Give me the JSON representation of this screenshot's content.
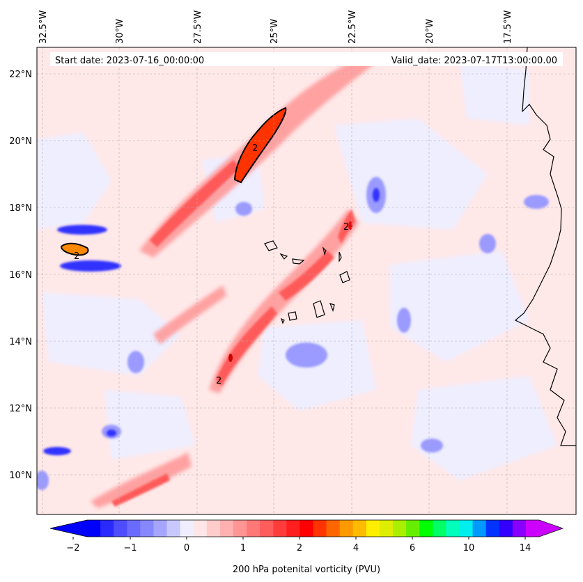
{
  "map": {
    "start_date": "Start date: 2023-07-16_00:00:00",
    "valid_date": "Valid_date: 2023-07-17T13:00:00.00",
    "contour_label": "2",
    "longitude_labels": [
      "32.5°W",
      "30°W",
      "27.5°W",
      "25°W",
      "22.5°W",
      "20°W",
      "17.5°W"
    ],
    "latitude_labels": [
      "22°N",
      "20°N",
      "18°N",
      "16°N",
      "14°N",
      "12°N",
      "10°N"
    ]
  },
  "colorbar": {
    "title": "200 hPa potenital vorticity (PVU)",
    "tick_labels": [
      "−2",
      "−1",
      "0",
      "1",
      "2",
      "4",
      "6",
      "10",
      "14"
    ],
    "colors": [
      "#0000ff",
      "#2a2aff",
      "#4d4dff",
      "#6a6aff",
      "#8787ff",
      "#a5a5ff",
      "#c8c8ff",
      "#eeeeff",
      "#ffe6e6",
      "#ffcccc",
      "#ffb0b0",
      "#ff9494",
      "#ff7878",
      "#ff5c5c",
      "#ff3c3c",
      "#ff1e1e",
      "#ff0000",
      "#ff3300",
      "#ff6600",
      "#ff9900",
      "#ffbb00",
      "#ffee00",
      "#ddee00",
      "#aaee00",
      "#66ee00",
      "#00ff00",
      "#00ff66",
      "#00ffbb",
      "#00eeee",
      "#0099ff",
      "#0033ff",
      "#3300ff",
      "#8800ff",
      "#cc00ff"
    ],
    "end_colors": {
      "low": "#0000ff",
      "high": "#cc00ff"
    }
  }
}
